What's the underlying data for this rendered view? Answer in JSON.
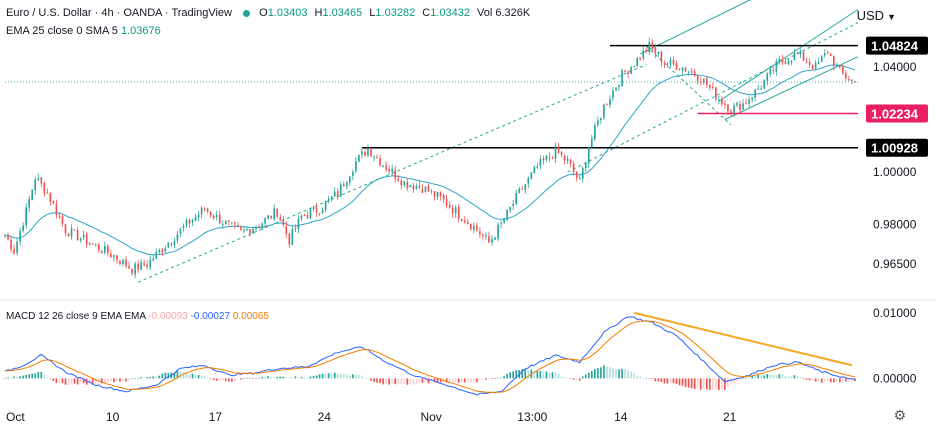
{
  "header": {
    "title": "Euro / U.S. Dollar · 4h · OANDA · TradingView",
    "ohlc": [
      {
        "label": "O",
        "value": "1.03403"
      },
      {
        "label": "H",
        "value": "1.03465"
      },
      {
        "label": "L",
        "value": "1.03282"
      },
      {
        "label": "C",
        "value": "1.03432"
      }
    ],
    "volume": "Vol 6.326K",
    "indicator_line": {
      "label": "EMA 25 close 0 SMA 5",
      "value": "1.03676"
    },
    "macd_line": {
      "label": "MACD 12 26 close 9 EMA EMA",
      "hist": "-0.00093",
      "macd": "-0.00027",
      "signal": "0.00065"
    }
  },
  "currency": "USD",
  "colors": {
    "up": "#26a69a",
    "down": "#ef5350",
    "ema": "#2ea6c7",
    "macd": "#2962ff",
    "signal": "#f57c00",
    "channel": "#26a69a",
    "trendline": "#f5a623",
    "support_mark": "#e91e63"
  },
  "chart_data": [
    {
      "type": "candlestick",
      "title": "Euro / U.S. Dollar",
      "interval": "4h",
      "ylim": [
        0.955,
        1.058
      ],
      "y_ticks": [
        "1.04000",
        "0.98000",
        "0.96500"
      ],
      "x_ticks": [
        "Oct",
        "10",
        "17",
        "24",
        "Nov",
        "13:00",
        "14",
        "21"
      ],
      "levels": [
        {
          "label": "1.04824",
          "value": 1.04824,
          "style": "black"
        },
        {
          "label": "1.02234",
          "value": 1.02234,
          "style": "pink"
        },
        {
          "label": "1.00928",
          "value": 1.00928,
          "style": "black"
        }
      ],
      "axis_values": [
        {
          "label": "1.00000",
          "value": 1.0
        }
      ],
      "current_price": 1.03432,
      "close_path": [
        [
          0,
          0.976
        ],
        [
          3,
          0.97
        ],
        [
          7,
          0.985
        ],
        [
          10,
          0.998
        ],
        [
          14,
          0.992
        ],
        [
          20,
          0.978
        ],
        [
          28,
          0.973
        ],
        [
          36,
          0.968
        ],
        [
          42,
          0.963
        ],
        [
          47,
          0.965
        ],
        [
          53,
          0.972
        ],
        [
          60,
          0.98
        ],
        [
          66,
          0.986
        ],
        [
          72,
          0.981
        ],
        [
          78,
          0.977
        ],
        [
          84,
          0.98
        ],
        [
          90,
          0.985
        ],
        [
          94,
          0.974
        ],
        [
          98,
          0.983
        ],
        [
          104,
          0.986
        ],
        [
          110,
          0.992
        ],
        [
          116,
          1.004
        ],
        [
          120,
          1.009
        ],
        [
          126,
          1.002
        ],
        [
          132,
          0.996
        ],
        [
          138,
          0.994
        ],
        [
          144,
          0.99
        ],
        [
          150,
          0.984
        ],
        [
          156,
          0.978
        ],
        [
          160,
          0.973
        ],
        [
          164,
          0.98
        ],
        [
          170,
          0.992
        ],
        [
          176,
          1.002
        ],
        [
          182,
          1.008
        ],
        [
          186,
          1.004
        ],
        [
          190,
          0.996
        ],
        [
          193,
          1.01
        ],
        [
          198,
          1.025
        ],
        [
          204,
          1.037
        ],
        [
          210,
          1.044
        ],
        [
          213,
          1.048
        ],
        [
          218,
          1.042
        ],
        [
          224,
          1.04
        ],
        [
          230,
          1.036
        ],
        [
          236,
          1.028
        ],
        [
          240,
          1.024
        ],
        [
          244,
          1.026
        ],
        [
          250,
          1.033
        ],
        [
          256,
          1.042
        ],
        [
          262,
          1.045
        ],
        [
          268,
          1.04
        ],
        [
          272,
          1.046
        ],
        [
          276,
          1.038
        ],
        [
          281,
          1.034
        ]
      ],
      "ema": {
        "label": "EMA 25 close",
        "value": 1.03676
      },
      "macd": {
        "ylim": [
          -0.0033,
          0.0112
        ],
        "y_ticks": [
          "0.01000",
          "0.00000"
        ],
        "macd_path": [
          [
            0,
            0.001
          ],
          [
            6,
            0.002
          ],
          [
            12,
            0.0035
          ],
          [
            20,
            0.001
          ],
          [
            30,
            -0.001
          ],
          [
            40,
            -0.002
          ],
          [
            50,
            -0.001
          ],
          [
            58,
            0.0015
          ],
          [
            66,
            0.002
          ],
          [
            74,
            0.0005
          ],
          [
            82,
            0.0008
          ],
          [
            90,
            0.0015
          ],
          [
            100,
            0.0018
          ],
          [
            110,
            0.004
          ],
          [
            118,
            0.0048
          ],
          [
            126,
            0.0025
          ],
          [
            136,
            0.0003
          ],
          [
            146,
            -0.001
          ],
          [
            156,
            -0.0025
          ],
          [
            164,
            -0.002
          ],
          [
            172,
            0.0015
          ],
          [
            182,
            0.0035
          ],
          [
            190,
            0.0025
          ],
          [
            198,
            0.007
          ],
          [
            206,
            0.0095
          ],
          [
            214,
            0.0085
          ],
          [
            222,
            0.0065
          ],
          [
            230,
            0.003
          ],
          [
            238,
            -0.0005
          ],
          [
            246,
            0.0005
          ],
          [
            254,
            0.002
          ],
          [
            262,
            0.0025
          ],
          [
            270,
            0.001
          ],
          [
            281,
            -0.0003
          ]
        ],
        "signal_offset": 6,
        "trendline": [
          [
            208,
            0.01
          ],
          [
            280,
            0.002
          ]
        ]
      }
    }
  ]
}
